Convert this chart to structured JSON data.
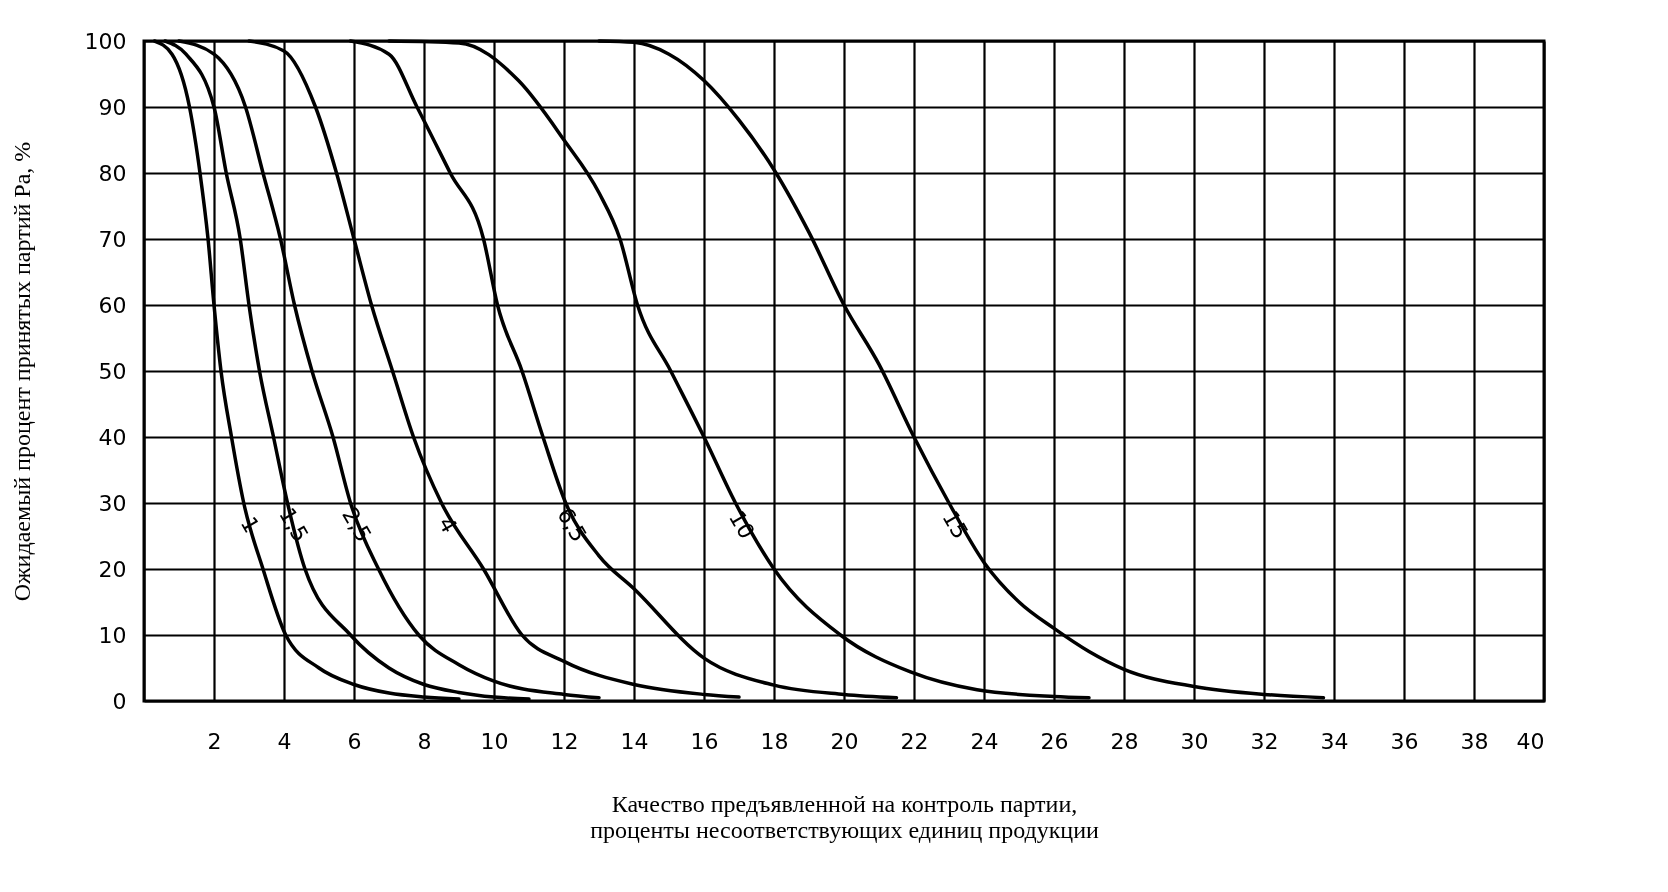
{
  "chart_data": {
    "type": "line",
    "xlabel": "Качество предъявленной на контроль партии,\nпроценты несоответствующих единиц продукции",
    "ylabel": "Ожидаемый процент принятых партий Ра, %",
    "xlim": [
      0,
      40
    ],
    "xticks": [
      {
        "value": 0,
        "label": null
      },
      2,
      4,
      6,
      8,
      10,
      12,
      14,
      16,
      18,
      20,
      22,
      24,
      26,
      28,
      30,
      32,
      34,
      36,
      38,
      40
    ],
    "ylim": [
      0,
      100
    ],
    "yticks": [
      0,
      10,
      20,
      30,
      40,
      50,
      60,
      70,
      80,
      90,
      100
    ],
    "grid": true,
    "legend": false,
    "marker": "none",
    "line_style": "solid",
    "series": [
      {
        "name": "1",
        "color": "#000000",
        "x": [
          0.3,
          0.8,
          1.3,
          1.6,
          1.83,
          2.0,
          2.2,
          2.5,
          2.85,
          3.4,
          4.05,
          5,
          6,
          7,
          8,
          9
        ],
        "values": [
          100,
          98,
          90,
          80,
          70,
          60,
          50,
          40,
          30,
          20,
          10,
          5,
          2.5,
          1.2,
          0.6,
          0.3
        ]
      },
      {
        "name": "1,5",
        "color": "#000000",
        "x": [
          0.6,
          1.2,
          2.0,
          2.35,
          2.75,
          3.0,
          3.3,
          3.7,
          4.1,
          4.6,
          5.9,
          7,
          8,
          9,
          10,
          11
        ],
        "values": [
          100,
          98,
          90,
          80,
          70,
          60,
          50,
          40,
          30,
          20,
          10,
          5,
          2.5,
          1.3,
          0.6,
          0.3
        ]
      },
      {
        "name": "2,5",
        "color": "#000000",
        "x": [
          1,
          2,
          2.9,
          3.4,
          3.9,
          4.3,
          4.8,
          5.4,
          5.9,
          6.7,
          7.85,
          9,
          10,
          12,
          13
        ],
        "values": [
          100,
          98,
          90,
          80,
          70,
          60,
          50,
          40,
          30,
          20,
          10,
          5.5,
          3,
          1,
          0.5
        ]
      },
      {
        "name": "4",
        "color": "#000000",
        "x": [
          3,
          4,
          4.9,
          5.5,
          6.0,
          6.5,
          7.1,
          7.7,
          8.5,
          9.7,
          10.8,
          12,
          14,
          16,
          17
        ],
        "values": [
          100,
          98.5,
          90,
          80,
          70,
          60,
          50,
          40,
          30,
          20,
          10,
          6,
          2.5,
          1,
          0.6
        ]
      },
      {
        "name": "6,5",
        "color": "#000000",
        "x": [
          5.9,
          7,
          7.8,
          8.75,
          9.7,
          10.1,
          10.8,
          11.4,
          12.05,
          13,
          14,
          16,
          18,
          20,
          21.5
        ],
        "values": [
          100,
          98,
          90,
          80,
          70,
          60,
          50,
          40,
          30,
          22,
          17,
          6.5,
          2.4,
          1,
          0.5
        ]
      },
      {
        "name": "10",
        "color": "#000000",
        "x": [
          7,
          9,
          10.7,
          12,
          13,
          13.6,
          14.1,
          15.05,
          16,
          16.9,
          18,
          19.9,
          21.9,
          23.8,
          26,
          27
        ],
        "values": [
          100,
          99.7,
          94,
          85,
          77,
          70,
          60,
          50,
          40,
          30,
          20,
          10,
          4.4,
          1.7,
          0.7,
          0.5
        ]
      },
      {
        "name": "15",
        "color": "#000000",
        "x": [
          13,
          14,
          15,
          16,
          17,
          18,
          19,
          20,
          21,
          22,
          23,
          24,
          25,
          26,
          27,
          28,
          30,
          32,
          33.7
        ],
        "values": [
          100,
          99.8,
          98,
          94,
          88,
          80.5,
          71,
          60,
          51,
          40,
          30,
          21,
          15,
          11,
          7.5,
          4.8,
          2.2,
          1,
          0.5
        ]
      }
    ]
  }
}
